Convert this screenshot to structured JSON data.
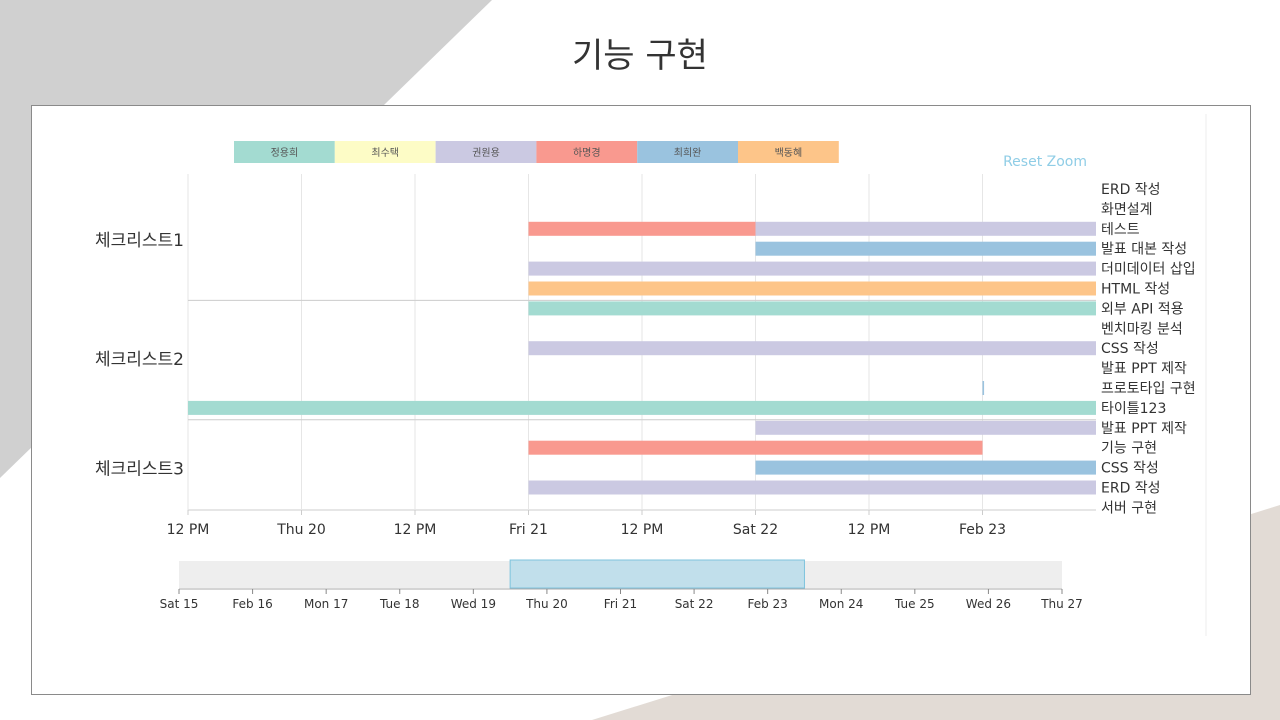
{
  "page": {
    "title": "기능 구현",
    "colors": {
      "decor_gray": "#d0d0d0",
      "decor_beige": "#e2dbd5"
    }
  },
  "reset_zoom_label": "Reset Zoom",
  "chart_data": {
    "type": "gantt",
    "x_axis": {
      "unit": "datetime",
      "range": [
        "2023-02-19T12:00",
        "2023-02-23T12:00"
      ],
      "ticks": [
        {
          "t": "2023-02-19T12:00",
          "label": "12 PM"
        },
        {
          "t": "2023-02-20T00:00",
          "label": "Thu 20"
        },
        {
          "t": "2023-02-20T12:00",
          "label": "12 PM"
        },
        {
          "t": "2023-02-21T00:00",
          "label": "Fri 21"
        },
        {
          "t": "2023-02-21T12:00",
          "label": "12 PM"
        },
        {
          "t": "2023-02-22T00:00",
          "label": "Sat 22"
        },
        {
          "t": "2023-02-22T12:00",
          "label": "12 PM"
        },
        {
          "t": "2023-02-23T00:00",
          "label": "Feb 23"
        }
      ]
    },
    "legend": {
      "placement": "top",
      "items": [
        {
          "name": "정용희",
          "color": "#a3dbd1"
        },
        {
          "name": "최수택",
          "color": "#fdfcc6"
        },
        {
          "name": "권원용",
          "color": "#cbc9e2"
        },
        {
          "name": "하명경",
          "color": "#f9998f"
        },
        {
          "name": "최희완",
          "color": "#9ac3df"
        },
        {
          "name": "백동혜",
          "color": "#fdc589"
        }
      ]
    },
    "groups": [
      {
        "name": "체크리스트1",
        "rows": [
          0,
          5
        ]
      },
      {
        "name": "체크리스트2",
        "rows": [
          6,
          11
        ]
      },
      {
        "name": "체크리스트3",
        "rows": [
          12,
          16
        ]
      }
    ],
    "tasks": [
      {
        "label": "ERD 작성",
        "bars": []
      },
      {
        "label": "화면설계",
        "bars": []
      },
      {
        "label": "테스트",
        "bars": [
          {
            "start": "2023-02-21T00:00",
            "end": "2023-02-22T00:00",
            "color": "#f9998f"
          },
          {
            "start": "2023-02-22T00:00",
            "end": "2023-02-23T12:00",
            "color": "#cbc9e2"
          }
        ]
      },
      {
        "label": "발표 대본 작성",
        "bars": [
          {
            "start": "2023-02-22T00:00",
            "end": "2023-02-23T12:00",
            "color": "#9ac3df"
          }
        ]
      },
      {
        "label": "더미데이터 삽입",
        "bars": [
          {
            "start": "2023-02-21T00:00",
            "end": "2023-02-23T12:00",
            "color": "#cbc9e2"
          }
        ]
      },
      {
        "label": "HTML 작성",
        "bars": [
          {
            "start": "2023-02-21T00:00",
            "end": "2023-02-23T12:00",
            "color": "#fdc589"
          }
        ]
      },
      {
        "label": "외부 API 적용",
        "bars": [
          {
            "start": "2023-02-21T00:00",
            "end": "2023-02-23T12:00",
            "color": "#a3dbd1"
          }
        ]
      },
      {
        "label": "벤치마킹 분석",
        "bars": []
      },
      {
        "label": "CSS 작성",
        "bars": [
          {
            "start": "2023-02-21T00:00",
            "end": "2023-02-23T12:00",
            "color": "#cbc9e2"
          }
        ]
      },
      {
        "label": "발표 PPT 제작",
        "bars": []
      },
      {
        "label": "프로토타입 구현",
        "bars": [
          {
            "start": "2023-02-23T00:00",
            "end": "2023-02-23T00:10",
            "color": "#9ac3df"
          }
        ]
      },
      {
        "label": "타이틀123",
        "bars": [
          {
            "start": "2023-02-19T12:00",
            "end": "2023-02-23T12:00",
            "color": "#a3dbd1"
          }
        ]
      },
      {
        "label": "발표 PPT 제작",
        "bars": [
          {
            "start": "2023-02-22T00:00",
            "end": "2023-02-23T12:00",
            "color": "#cbc9e2"
          }
        ]
      },
      {
        "label": "기능 구현",
        "bars": [
          {
            "start": "2023-02-21T00:00",
            "end": "2023-02-23T00:00",
            "color": "#f9998f"
          }
        ]
      },
      {
        "label": "CSS 작성",
        "bars": [
          {
            "start": "2023-02-22T00:00",
            "end": "2023-02-23T12:00",
            "color": "#9ac3df"
          }
        ]
      },
      {
        "label": "ERD 작성",
        "bars": [
          {
            "start": "2023-02-21T00:00",
            "end": "2023-02-23T12:00",
            "color": "#cbc9e2"
          }
        ]
      },
      {
        "label": "서버 구현",
        "bars": []
      }
    ],
    "navigator": {
      "range": [
        "2023-02-15T00:00",
        "2023-02-27T00:00"
      ],
      "selection": [
        "2023-02-19T12:00",
        "2023-02-23T12:00"
      ],
      "ticks": [
        {
          "t": "2023-02-15T00:00",
          "label": "Sat 15"
        },
        {
          "t": "2023-02-16T00:00",
          "label": "Feb 16"
        },
        {
          "t": "2023-02-17T00:00",
          "label": "Mon 17"
        },
        {
          "t": "2023-02-18T00:00",
          "label": "Tue 18"
        },
        {
          "t": "2023-02-19T00:00",
          "label": "Wed 19"
        },
        {
          "t": "2023-02-20T00:00",
          "label": "Thu 20"
        },
        {
          "t": "2023-02-21T00:00",
          "label": "Fri 21"
        },
        {
          "t": "2023-02-22T00:00",
          "label": "Sat 22"
        },
        {
          "t": "2023-02-23T00:00",
          "label": "Feb 23"
        },
        {
          "t": "2023-02-24T00:00",
          "label": "Mon 24"
        },
        {
          "t": "2023-02-25T00:00",
          "label": "Tue 25"
        },
        {
          "t": "2023-02-26T00:00",
          "label": "Wed 26"
        },
        {
          "t": "2023-02-27T00:00",
          "label": "Thu 27"
        }
      ]
    }
  }
}
